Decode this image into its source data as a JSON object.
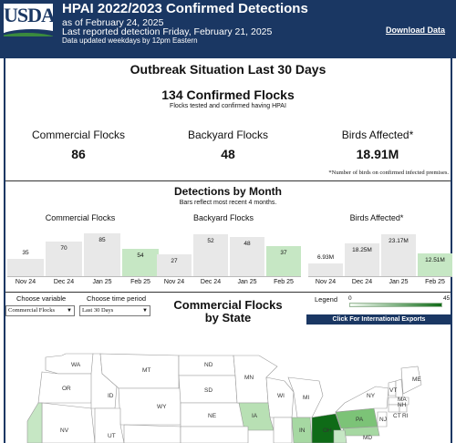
{
  "header": {
    "logo": "USDA",
    "title": "HPAI 2022/2023 Confirmed Detections",
    "as_of": "as of February 24, 2025",
    "last_reported": "Last reported detection Friday, February 21, 2025",
    "updated": "Data updated weekdays by 12pm Eastern",
    "download_label": "Download Data"
  },
  "outbreak": {
    "title": "Outbreak Situation Last 30 Days",
    "confirmed_title": "134 Confirmed Flocks",
    "confirmed_sub": "Flocks tested and confirmed having HPAI",
    "stats": [
      {
        "label": "Commercial Flocks",
        "value": "86"
      },
      {
        "label": "Backyard Flocks",
        "value": "48"
      },
      {
        "label": "Birds Affected*",
        "value": "18.91M"
      }
    ],
    "note": "*Number of birds on confirmed infected premises."
  },
  "detections": {
    "title": "Detections by Month",
    "subtitle": "Bars reflect most recent 4 months."
  },
  "chart_data": [
    {
      "type": "bar",
      "title": "Commercial Flocks",
      "categories": [
        "Nov 24",
        "Dec 24",
        "Jan 25",
        "Feb 25"
      ],
      "values": [
        35,
        70,
        85,
        54
      ],
      "labels": [
        "35",
        "70",
        "85",
        "54"
      ],
      "ylim": [
        0,
        100
      ],
      "highlight_color": "#c6e7c4",
      "bar_color": "#e8e8e8"
    },
    {
      "type": "bar",
      "title": "Backyard Flocks",
      "categories": [
        "Nov 24",
        "Dec 24",
        "Jan 25",
        "Feb 25"
      ],
      "values": [
        27,
        52,
        48,
        37
      ],
      "labels": [
        "27",
        "52",
        "48",
        "37"
      ],
      "ylim": [
        0,
        62
      ],
      "highlight_color": "#c6e7c4",
      "bar_color": "#e8e8e8"
    },
    {
      "type": "bar",
      "title": "Birds Affected*",
      "categories": [
        "Nov 24",
        "Dec 24",
        "Jan 25",
        "Feb 25"
      ],
      "values": [
        6.93,
        18.25,
        23.17,
        12.51
      ],
      "labels": [
        "6.93M",
        "18.25M",
        "23.17M",
        "12.51M"
      ],
      "ylim": [
        0,
        28
      ],
      "highlight_color": "#c6e7c4",
      "bar_color": "#e8e8e8"
    }
  ],
  "controls": {
    "variable_label": "Choose variable",
    "variable_value": "Commercial Flocks",
    "period_label": "Choose time period",
    "period_value": "Last 30 Days"
  },
  "map": {
    "title_line1": "Commercial Flocks",
    "title_line2": "by State",
    "legend_label": "Legend",
    "legend_min": "0",
    "legend_max": "45",
    "intl_button": "Click For International Exports",
    "states": [
      "WA",
      "MT",
      "ND",
      "MN",
      "ME",
      "OR",
      "ID",
      "SD",
      "WI",
      "MI",
      "NY",
      "VT",
      "NH",
      "WY",
      "IA",
      "MA",
      "NE",
      "CT",
      "RI",
      "PA",
      "NJ",
      "IN",
      "OH",
      "NV",
      "UT",
      "MD"
    ]
  },
  "colors": {
    "header_bg": "#1a3763",
    "highlight_green": "#c6e7c4",
    "dark_green": "#0f6b17"
  }
}
